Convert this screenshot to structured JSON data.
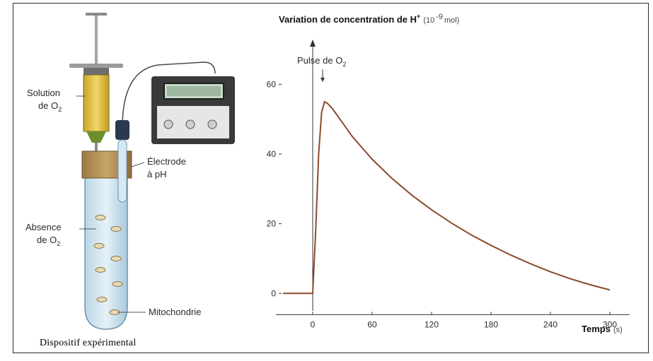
{
  "apparatus": {
    "label_solution": "Solution",
    "label_solution_sub": "de O",
    "label_absence": "Absence",
    "label_absence_sub": "de O",
    "subscript_two": "2",
    "label_electrode": "Électrode",
    "label_electrode_sub": "à pH",
    "label_mito": "Mitochondrie",
    "caption": "Dispositif expérimental"
  },
  "chart_data": {
    "type": "line",
    "title": "Variation de concentration de H",
    "title_sup": "+",
    "title_unit": "(10",
    "title_unit_exp": "-9",
    "title_unit_end": "mol)",
    "xlabel": "Temps",
    "xunit": "(s)",
    "annotation": "Pulse de O",
    "annotation_sub": "2",
    "annotation_x": 10,
    "xlim": [
      -30,
      320
    ],
    "ylim": [
      -5,
      70
    ],
    "xticks": [
      0,
      60,
      120,
      180,
      240,
      300
    ],
    "yticks": [
      0,
      20,
      40,
      60
    ],
    "line_color": "#8b4a2b",
    "series": [
      {
        "x": [
          -30,
          0,
          3,
          6,
          9,
          12,
          15,
          20,
          30,
          40,
          60,
          80,
          100,
          120,
          140,
          160,
          180,
          200,
          220,
          240,
          260,
          280,
          300
        ],
        "y": [
          0,
          0,
          18,
          40,
          52,
          55,
          54.5,
          53,
          49,
          45,
          38.5,
          33,
          28.2,
          24,
          20.2,
          16.8,
          13.8,
          11,
          8.5,
          6.2,
          4.2,
          2.5,
          1
        ]
      }
    ]
  }
}
